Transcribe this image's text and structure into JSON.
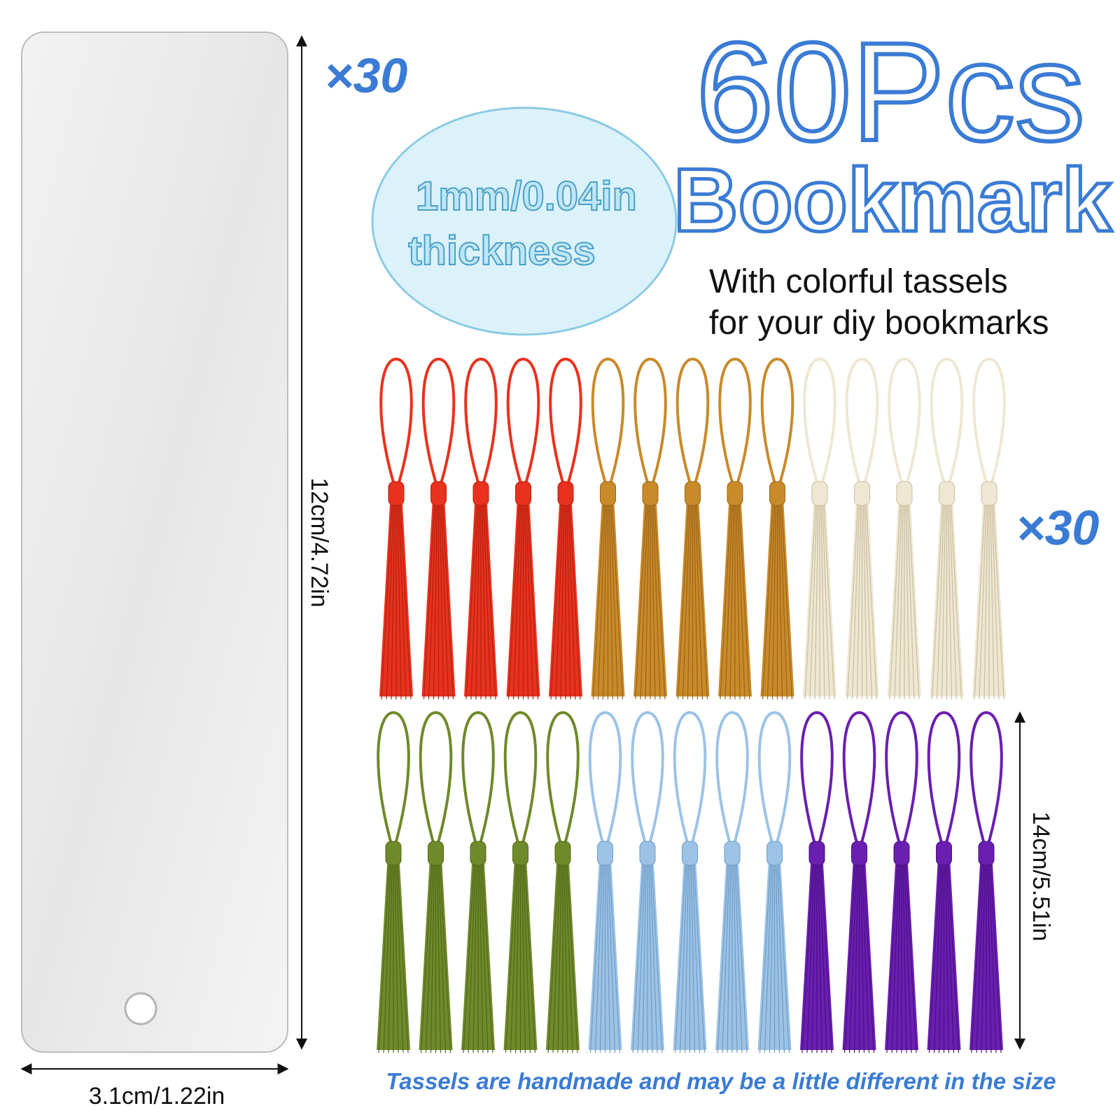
{
  "headline": {
    "line1": "60Pcs",
    "line2": "Bookmark"
  },
  "subtitle": {
    "line1": "With colorful tassels",
    "line2": "for your diy bookmarks"
  },
  "bookmark": {
    "count": "×30",
    "height_label": "12cm/4.72in",
    "width_label": "3.1cm/1.22in"
  },
  "thickness": {
    "line1": "1mm/0.04in",
    "line2": "thickness"
  },
  "tassels": {
    "count": "×30",
    "length_label": "14cm/5.51in",
    "note": "Tassels are handmade and may be a little different in the size"
  }
}
